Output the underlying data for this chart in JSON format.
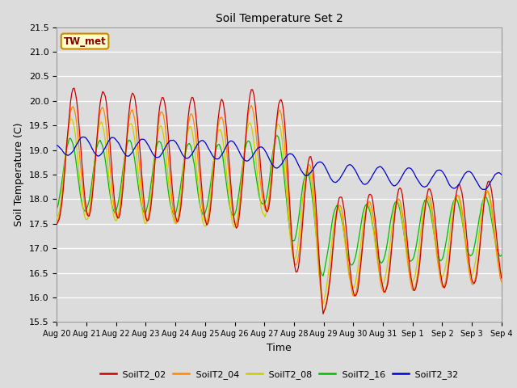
{
  "title": "Soil Temperature Set 2",
  "xlabel": "Time",
  "ylabel": "Soil Temperature (C)",
  "bg_color": "#dcdcdc",
  "plot_bg_color": "#dcdcdc",
  "ylim": [
    15.5,
    21.5
  ],
  "series_colors": {
    "SoilT2_02": "#cc0000",
    "SoilT2_04": "#ff8800",
    "SoilT2_08": "#cccc00",
    "SoilT2_16": "#00bb00",
    "SoilT2_32": "#0000cc"
  },
  "annotation_text": "TW_met",
  "annotation_bg": "#ffffcc",
  "annotation_border": "#cc8800",
  "annotation_color": "#880000",
  "yticks": [
    15.5,
    16.0,
    16.5,
    17.0,
    17.5,
    18.0,
    18.5,
    19.0,
    19.5,
    20.0,
    20.5,
    21.0,
    21.5
  ],
  "xtick_labels": [
    "Aug 20",
    "Aug 21",
    "Aug 22",
    "Aug 23",
    "Aug 24",
    "Aug 25",
    "Aug 26",
    "Aug 27",
    "Aug 28",
    "Aug 29",
    "Aug 30",
    "Aug 31",
    "Sep 1",
    "Sep 2",
    "Sep 3",
    "Sep 4"
  ],
  "n_days": 15,
  "samples_per_day": 24,
  "figsize": [
    6.4,
    4.8
  ],
  "dpi": 100
}
